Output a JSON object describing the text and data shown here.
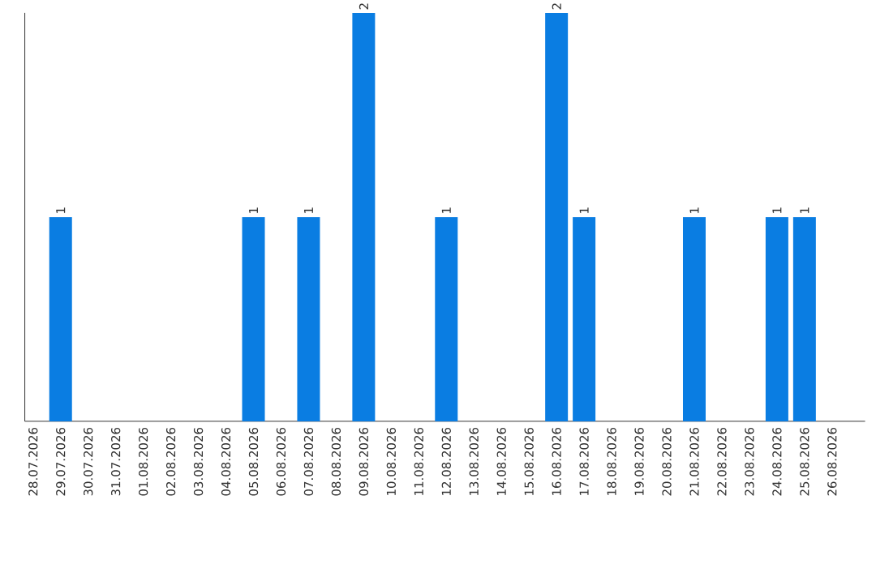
{
  "chart_data": {
    "type": "bar",
    "categories": [
      "28.07.2026",
      "29.07.2026",
      "30.07.2026",
      "31.07.2026",
      "01.08.2026",
      "02.08.2026",
      "03.08.2026",
      "04.08.2026",
      "05.08.2026",
      "06.08.2026",
      "07.08.2026",
      "08.08.2026",
      "09.08.2026",
      "10.08.2026",
      "11.08.2026",
      "12.08.2026",
      "13.08.2026",
      "14.08.2026",
      "15.08.2026",
      "16.08.2026",
      "17.08.2026",
      "18.08.2026",
      "19.08.2026",
      "20.08.2026",
      "21.08.2026",
      "22.08.2026",
      "23.08.2026",
      "24.08.2026",
      "25.08.2026",
      "26.08.2026"
    ],
    "values": [
      0,
      1,
      0,
      0,
      0,
      0,
      0,
      0,
      1,
      0,
      1,
      0,
      2,
      0,
      0,
      1,
      0,
      0,
      0,
      2,
      1,
      0,
      0,
      0,
      1,
      0,
      0,
      1,
      1,
      0
    ],
    "value_labels": [
      null,
      "1",
      null,
      null,
      null,
      null,
      null,
      null,
      "1",
      null,
      "1",
      null,
      "2",
      null,
      null,
      "1",
      null,
      null,
      null,
      "2",
      "1",
      null,
      null,
      null,
      "1",
      null,
      null,
      "1",
      "1",
      null
    ],
    "color": "#0a7de2",
    "ylim": [
      0,
      2
    ],
    "tick_labels": "x"
  }
}
